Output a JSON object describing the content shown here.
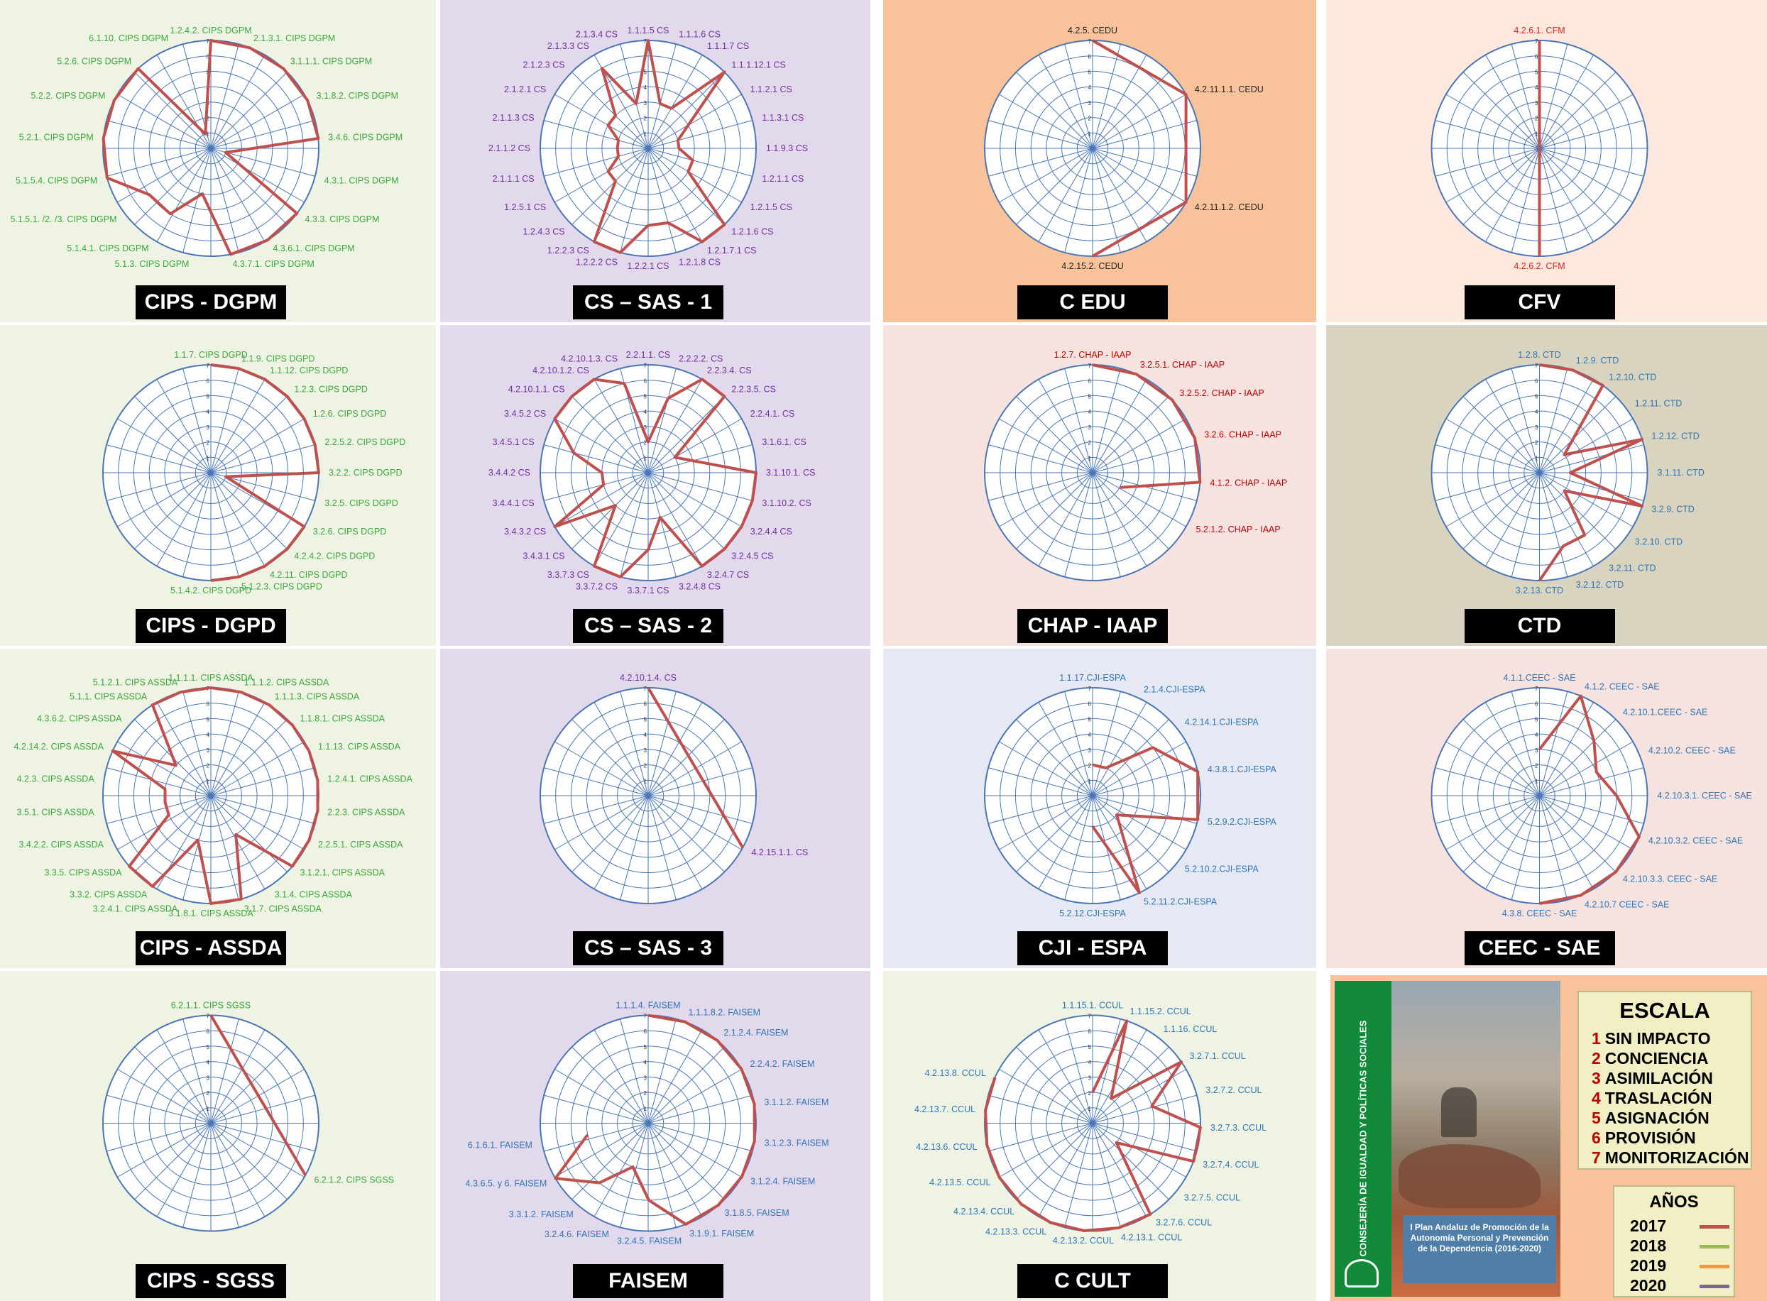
{
  "colors": {
    "series_2017": "#c0504d",
    "grid": "#4a76b8",
    "title_bg": "#000000",
    "title_fg": "#ffffff",
    "scale_number": "#c00000",
    "year_2017": "#c0504d",
    "year_2018": "#9bbb59",
    "year_2019": "#f79646",
    "year_2020": "#8064a2"
  },
  "chart_data": [
    {
      "type": "radar",
      "title": "CIPS - DGPM",
      "bg": "#eef3e4",
      "label_color": "#3aa83a",
      "rmax": 7,
      "categories": [
        "1.2.4.2. CIPS DGPM",
        "2.1.3.1. CIPS DGPM",
        "3.1.1.1. CIPS DGPM",
        "3.1.8.2. CIPS DGPM",
        "3.4.6. CIPS DGPM",
        "4.3.1. CIPS DGPM",
        "4.3.3. CIPS DGPM",
        "4.3.6.1. CIPS DGPM",
        "4.3.7.1. CIPS DGPM",
        "5.1.3. CIPS DGPM",
        "5.1.4.1. CIPS DGPM",
        "5.1.5.1. /2. /3. CIPS DGPM",
        "5.1.5.4. CIPS DGPM",
        "5.2.1. CIPS DGPM",
        "5.2.2. CIPS DGPM",
        "5.2.6. CIPS DGPM",
        "6.1.10. CIPS DGPM"
      ],
      "series": [
        {
          "name": "2017",
          "values": [
            7,
            7,
            7,
            7,
            7,
            1,
            7,
            7,
            7,
            3,
            5,
            5,
            7,
            7,
            7,
            7,
            1
          ]
        }
      ]
    },
    {
      "type": "radar",
      "title": "CS – SAS - 1",
      "bg": "#e3d9ec",
      "label_color": "#7030a0",
      "rmax": 7,
      "categories": [
        "1.1.1.5 CS",
        "1.1.1.6 CS",
        "1.1.1.7 CS",
        "1.1.1.12.1 CS",
        "1.1.2.1 CS",
        "1.1.3.1 CS",
        "1.1.9.3 CS",
        "1.2.1.1 CS",
        "1.2.1.5 CS",
        "1.2.1.6 CS",
        "1.2.1.7.1 CS",
        "1.2.1.8 CS",
        "1.2.2.1 CS",
        "1.2.2.2 CS",
        "1.2.2.3 CS",
        "1.2.4.3 CS",
        "1.2.5.1 CS",
        "2.1.1.1 CS",
        "2.1.1.2 CS",
        "2.1.1.3 CS",
        "2.1.2.1 CS",
        "2.1.2.3 CS",
        "2.1.3.3 CS",
        "2.1.3.4 CS"
      ],
      "series": [
        {
          "name": "2017",
          "values": [
            7,
            3,
            3,
            7,
            3,
            2,
            2,
            3,
            3,
            7,
            7,
            5,
            5,
            7,
            7,
            3,
            3,
            2,
            2,
            2,
            3,
            3,
            6,
            3
          ]
        }
      ]
    },
    {
      "type": "radar",
      "title": "C EDU",
      "bg": "#f8c39a",
      "label_color": "#222222",
      "rmax": 7,
      "categories": [
        "4.2.5. CEDU",
        "4.2.11.1.1. CEDU",
        "4.2.11.1.2. CEDU",
        "4.2.15.2. CEDU"
      ],
      "sweep": [
        0,
        0.5
      ],
      "series": [
        {
          "name": "2017",
          "values": [
            7,
            7,
            7,
            7
          ]
        }
      ]
    },
    {
      "type": "radar",
      "title": "CFV",
      "bg": "#fce8dc",
      "label_color": "#e02020",
      "rmax": 7,
      "categories": [
        "4.2.6.1. CFM",
        "4.2.6.2. CFM"
      ],
      "sweep": [
        0,
        0.5
      ],
      "series": [
        {
          "name": "2017",
          "values": [
            7,
            7
          ]
        }
      ]
    },
    {
      "type": "radar",
      "title": "CIPS - DGPD",
      "bg": "#eef3e4",
      "label_color": "#3aa83a",
      "rmax": 7,
      "categories": [
        "1.1.7. CIPS DGPD",
        "1.1.9. CIPS DGPD",
        "1.1.12. CIPS DGPD",
        "1.2.3. CIPS DGPD",
        "1.2.6. CIPS DGPD",
        "2.2.5.2. CIPS DGPD",
        "3.2.2. CIPS DGPD",
        "3.2.5. CIPS DGPD",
        "3.2.6. CIPS DGPD",
        "4.2.4.2. CIPS DGPD",
        "4.2.11. CIPS DGPD",
        "5.1.2.3. CIPS DGPD",
        "5.1.4.2. CIPS DGPD"
      ],
      "sweep": [
        0,
        0.5
      ],
      "series": [
        {
          "name": "2017",
          "values": [
            7,
            7,
            7,
            7,
            7,
            7,
            7,
            1,
            7,
            7,
            7,
            7,
            7
          ]
        }
      ]
    },
    {
      "type": "radar",
      "title": "CS – SAS - 2",
      "bg": "#e3d9ec",
      "label_color": "#7030a0",
      "rmax": 7,
      "categories": [
        "2.2.1.1. CS",
        "2.2.2.2. CS",
        "2.2.3.4. CS",
        "2.2.3.5. CS",
        "2.2.4.1. CS",
        "3.1.6.1. CS",
        "3.1.10.1. CS",
        "3.1.10.2. CS",
        "3.2.4.4 CS",
        "3.2.4.5 CS",
        "3.2.4.7 CS",
        "3.2.4.8 CS",
        "3.3.7.1 CS",
        "3.3.7.2 CS",
        "3.3.7.3 CS",
        "3.4.3.1 CS",
        "3.4.3.2 CS",
        "3.4.4.1 CS",
        "3.4.4.2 CS",
        "3.4.5.1 CS",
        "3.4.5.2 CS",
        "4.2.10.1.1. CS",
        "4.2.10.1.2. CS",
        "4.2.10.1.3. CS"
      ],
      "series": [
        {
          "name": "2017",
          "values": [
            2,
            5,
            7,
            7,
            2,
            3,
            7,
            7,
            7,
            7,
            7,
            3,
            5,
            7,
            7,
            3,
            7,
            3,
            3,
            5,
            7,
            7,
            7,
            6
          ]
        }
      ]
    },
    {
      "type": "radar",
      "title": "CHAP - IAAP",
      "bg": "#f6e3e0",
      "label_color": "#c00000",
      "rmax": 7,
      "categories": [
        "1.2.7. CHAP - IAAP",
        "3.2.5.1. CHAP - IAAP",
        "3.2.5.2. CHAP - IAAP",
        "3.2.6. CHAP - IAAP",
        "4.1.2. CHAP - IAAP",
        "5.2.1.2. CHAP - IAAP"
      ],
      "sweep": [
        0,
        0.33
      ],
      "series": [
        {
          "name": "2017",
          "values": [
            7,
            7,
            7,
            7,
            7,
            2
          ]
        }
      ]
    },
    {
      "type": "radar",
      "title": "CTD",
      "bg": "#d9d4c0",
      "label_color": "#2e75b6",
      "rmax": 7,
      "categories": [
        "1.2.8. CTD",
        "1.2.9. CTD",
        "1.2.10. CTD",
        "1.2.11. CTD",
        "1.2.12. CTD",
        "3.1.11. CTD",
        "3.2.9. CTD",
        "3.2.10. CTD",
        "3.2.11. CTD",
        "3.2.12. CTD",
        "3.2.13. CTD"
      ],
      "sweep": [
        0,
        0.5
      ],
      "series": [
        {
          "name": "2017",
          "values": [
            7,
            7,
            7,
            2,
            7,
            2,
            7,
            2,
            5,
            5,
            7
          ]
        }
      ]
    },
    {
      "type": "radar",
      "title": "CIPS - ASSDA",
      "bg": "#eef3e4",
      "label_color": "#3aa83a",
      "rmax": 7,
      "categories": [
        "1.1.1.1. CIPS ASSDA",
        "1.1.1.2. CIPS ASSDA",
        "1.1.1.3. CIPS ASSDA",
        "1.1.8.1. CIPS ASSDA",
        "1.1.13. CIPS ASSDA",
        "1.2.4.1. CIPS ASSDA",
        "2.2.3. CIPS ASSDA",
        "2.2.5.1. CIPS ASSDA",
        "3.1.2.1. CIPS ASSDA",
        "3.1.4. CIPS ASSDA",
        "3.1.7. CIPS ASSDA",
        "3.1.8.1. CIPS ASSDA",
        "3.2.4.1. CIPS ASSDA",
        "3.3.2. CIPS ASSDA",
        "3.3.5. CIPS ASSDA",
        "3.4.2.2. CIPS ASSDA",
        "3.5.1. CIPS ASSDA",
        "4.2.3. CIPS ASSDA",
        "4.2.14.2. CIPS ASSDA",
        "4.3.6.2. CIPS ASSDA",
        "5.1.1. CIPS ASSDA",
        "5.1.2.1. CIPS ASSDA"
      ],
      "series": [
        {
          "name": "2017",
          "values": [
            7,
            7,
            7,
            7,
            7,
            7,
            7,
            7,
            7,
            3,
            7,
            7,
            3,
            7,
            7,
            3,
            3,
            3,
            7,
            3,
            7,
            7
          ]
        }
      ]
    },
    {
      "type": "radar",
      "title": "CS – SAS - 3",
      "bg": "#e3d9ec",
      "label_color": "#7030a0",
      "rmax": 7,
      "categories": [
        "4.2.10.1.4. CS",
        "4.2.15.1.1. CS"
      ],
      "sweep": [
        0,
        0.33
      ],
      "series": [
        {
          "name": "2017",
          "values": [
            7,
            7
          ]
        }
      ]
    },
    {
      "type": "radar",
      "title": "CJI - ESPA",
      "bg": "#e6e9f3",
      "label_color": "#2e75b6",
      "rmax": 7,
      "categories": [
        "1.1.17.CJI-ESPA",
        "2.1.4.CJI-ESPA",
        "4.2.14.1.CJI-ESPA",
        "4.3.8.1.CJI-ESPA",
        "5.2.9.2.CJI-ESPA",
        "5.2.10.2.CJI-ESPA",
        "5.2.11.2.CJI-ESPA",
        "5.2.12.CJI-ESPA"
      ],
      "sweep": [
        0,
        0.5
      ],
      "series": [
        {
          "name": "2017",
          "values": [
            2,
            2,
            5,
            7,
            7,
            2,
            7,
            2
          ]
        }
      ]
    },
    {
      "type": "radar",
      "title": "CEEC - SAE",
      "bg": "#f6e3e0",
      "label_color": "#2e75b6",
      "rmax": 7,
      "categories": [
        "4.1.1.CEEC - SAE",
        "4.1.2. CEEC - SAE",
        "4.2.10.1.CEEC - SAE",
        "4.2.10.2. CEEC - SAE",
        "4.2.10.3.1. CEEC - SAE",
        "4.2.10.3.2. CEEC - SAE",
        "4.2.10.3.3. CEEC - SAE",
        "4.2.10.7 CEEC - SAE",
        "4.3.8. CEEC - SAE"
      ],
      "sweep": [
        0,
        0.5
      ],
      "series": [
        {
          "name": "2017",
          "values": [
            3,
            7,
            5,
            4,
            5,
            7,
            7,
            7,
            7
          ]
        }
      ]
    },
    {
      "type": "radar",
      "title": "CIPS - SGSS",
      "bg": "#eef3e4",
      "label_color": "#3aa83a",
      "rmax": 7,
      "categories": [
        "6.2.1.1. CIPS SGSS",
        "6.2.1.2. CIPS SGSS"
      ],
      "sweep": [
        0,
        0.33
      ],
      "series": [
        {
          "name": "2017",
          "values": [
            7,
            7
          ]
        }
      ]
    },
    {
      "type": "radar",
      "title": "FAISEM",
      "bg": "#e3d9ec",
      "label_color": "#2e75b6",
      "rmax": 7,
      "categories": [
        "1.1.1.4. FAISEM",
        "1.1.1.8.2. FAISEM",
        "2.1.2.4. FAISEM",
        "2.2.4.2. FAISEM",
        "3.1.1.2. FAISEM",
        "3.1.2.3. FAISEM",
        "3.1.2.4. FAISEM",
        "3.1.8.5. FAISEM",
        "3.1.9.1. FAISEM",
        "3.2.4.5. FAISEM",
        "3.2.4.6. FAISEM",
        "3.3.1.2. FAISEM",
        "4.3.6.5. y 6. FAISEM",
        "6.1.6.1. FAISEM"
      ],
      "sweep": [
        0,
        0.72
      ],
      "series": [
        {
          "name": "2017",
          "values": [
            7,
            7,
            7,
            7,
            7,
            7,
            7,
            7,
            7,
            5,
            3,
            5,
            7,
            4
          ]
        }
      ]
    },
    {
      "type": "radar",
      "title": "C CULT",
      "bg": "#eef3e4",
      "label_color": "#2e75b6",
      "rmax": 7,
      "categories": [
        "1.1.15.1. CCUL",
        "1.1.15.2. CCUL",
        "1.1.16. CCUL",
        "3.2.7.1. CCUL",
        "3.2.7.2. CCUL",
        "3.2.7.3. CCUL",
        "3.2.7.4. CCUL",
        "3.2.7.5. CCUL",
        "3.2.7.6. CCUL",
        "4.2.13.1. CCUL",
        "4.2.13.2. CCUL",
        "4.2.13.3. CCUL",
        "4.2.13.4. CCUL",
        "4.2.13.5. CCUL",
        "4.2.13.6. CCUL",
        "4.2.13.7. CCUL",
        "4.2.13.8. CCUL"
      ],
      "sweep": [
        0,
        0.82
      ],
      "series": [
        {
          "name": "2017",
          "values": [
            2,
            7,
            2,
            7,
            4,
            7,
            7,
            2,
            7,
            7,
            7,
            7,
            7,
            7,
            7,
            7,
            7
          ]
        }
      ]
    }
  ],
  "legend": {
    "cover_org": "CONSEJERÍA DE IGUALDAD Y POLÍTICAS SOCIALES",
    "cover_text": "I Plan Andaluz de Promoción de la Autonomía Personal y Prevención de la Dependencia (2016-2020)",
    "escala_title": "ESCALA",
    "escala_items": [
      {
        "num": "1",
        "label": "SIN IMPACTO"
      },
      {
        "num": "2",
        "label": "CONCIENCIA"
      },
      {
        "num": "3",
        "label": "ASIMILACIÓN"
      },
      {
        "num": "4",
        "label": "TRASLACIÓN"
      },
      {
        "num": "5",
        "label": "ASIGNACIÓN"
      },
      {
        "num": "6",
        "label": "PROVISIÓN"
      },
      {
        "num": "7",
        "label": "MONITORIZACIÓN"
      }
    ],
    "years_title": "AÑOS",
    "years": [
      {
        "label": "2017",
        "color": "#c0504d"
      },
      {
        "label": "2018",
        "color": "#9bbb59"
      },
      {
        "label": "2019",
        "color": "#f79646"
      },
      {
        "label": "2020",
        "color": "#8064a2"
      }
    ]
  }
}
